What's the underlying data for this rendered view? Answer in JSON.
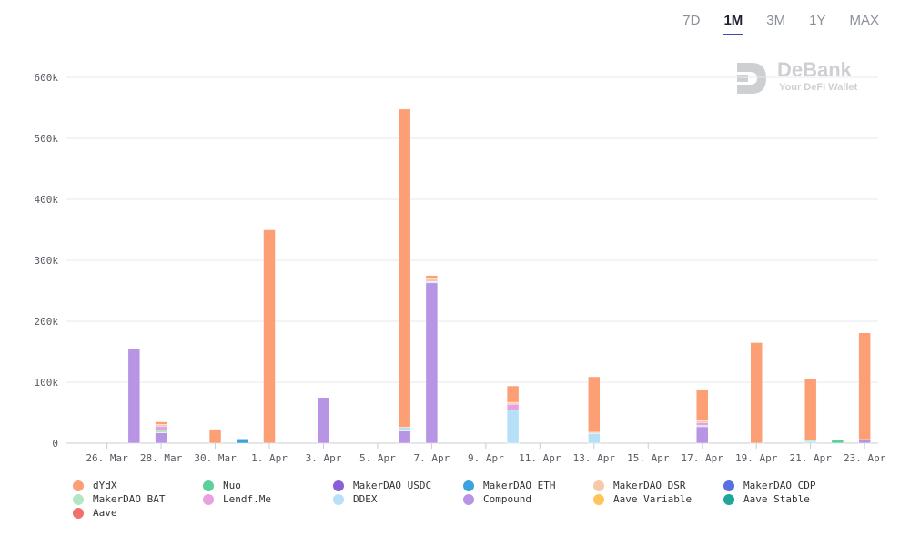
{
  "range_tabs": [
    {
      "label": "7D",
      "active": false
    },
    {
      "label": "1M",
      "active": true
    },
    {
      "label": "3M",
      "active": false
    },
    {
      "label": "1Y",
      "active": false
    },
    {
      "label": "MAX",
      "active": false
    }
  ],
  "watermark": {
    "name": "DeBank",
    "tagline": "Your DeFi Wallet"
  },
  "chart_data": {
    "type": "bar",
    "stacked": true,
    "title": "",
    "xlabel": "",
    "ylabel": "",
    "ylim": [
      0,
      600000
    ],
    "y_ticks": [
      0,
      100000,
      200000,
      300000,
      400000,
      500000,
      600000
    ],
    "y_tick_labels": [
      "0",
      "100k",
      "200k",
      "300k",
      "400k",
      "500k",
      "600k"
    ],
    "x_tick_labels": [
      "26. Mar",
      "28. Mar",
      "30. Mar",
      "1. Apr",
      "3. Apr",
      "5. Apr",
      "7. Apr",
      "9. Apr",
      "11. Apr",
      "13. Apr",
      "15. Apr",
      "17. Apr",
      "19. Apr",
      "21. Apr",
      "23. Apr"
    ],
    "categories": [
      "25. Mar",
      "26. Mar",
      "27. Mar",
      "28. Mar",
      "29. Mar",
      "30. Mar",
      "31. Mar",
      "1. Apr",
      "2. Apr",
      "3. Apr",
      "4. Apr",
      "5. Apr",
      "6. Apr",
      "7. Apr",
      "8. Apr",
      "9. Apr",
      "10. Apr",
      "11. Apr",
      "12. Apr",
      "13. Apr",
      "14. Apr",
      "15. Apr",
      "16. Apr",
      "17. Apr",
      "18. Apr",
      "19. Apr",
      "20. Apr",
      "21. Apr",
      "22. Apr",
      "23. Apr"
    ],
    "series": [
      {
        "name": "Compound",
        "color": "#b794e4",
        "values": [
          0,
          0,
          155000,
          17000,
          0,
          0,
          0,
          0,
          0,
          75000,
          0,
          0,
          20000,
          263000,
          0,
          0,
          0,
          0,
          0,
          0,
          0,
          0,
          0,
          27000,
          0,
          0,
          0,
          0,
          0,
          6000
        ]
      },
      {
        "name": "DDEX",
        "color": "#b6e0f7",
        "values": [
          0,
          0,
          0,
          0,
          0,
          0,
          0,
          0,
          0,
          0,
          0,
          0,
          6000,
          2000,
          0,
          0,
          54000,
          0,
          0,
          16000,
          0,
          0,
          0,
          0,
          0,
          0,
          0,
          3000,
          0,
          0
        ]
      },
      {
        "name": "MakerDAO ETH",
        "color": "#3aa3dc",
        "values": [
          0,
          0,
          0,
          0,
          0,
          0,
          7000,
          0,
          0,
          0,
          0,
          0,
          0,
          0,
          0,
          0,
          0,
          0,
          0,
          0,
          0,
          0,
          0,
          0,
          0,
          0,
          0,
          0,
          0,
          0
        ]
      },
      {
        "name": "MakerDAO BAT",
        "color": "#b3e6c4",
        "values": [
          0,
          0,
          0,
          5000,
          0,
          0,
          0,
          0,
          0,
          0,
          0,
          0,
          0,
          0,
          0,
          0,
          0,
          0,
          0,
          0,
          0,
          0,
          0,
          2000,
          0,
          0,
          0,
          2000,
          0,
          0
        ]
      },
      {
        "name": "Lendf.Me",
        "color": "#e8a0e0",
        "values": [
          0,
          0,
          0,
          6000,
          0,
          0,
          0,
          0,
          0,
          0,
          0,
          0,
          0,
          0,
          0,
          0,
          10000,
          0,
          0,
          0,
          0,
          0,
          0,
          5000,
          0,
          0,
          0,
          0,
          0,
          0
        ]
      },
      {
        "name": "Nuo",
        "color": "#5bcf9c",
        "values": [
          0,
          0,
          0,
          0,
          0,
          0,
          0,
          0,
          0,
          0,
          0,
          0,
          0,
          0,
          0,
          0,
          0,
          0,
          0,
          0,
          0,
          0,
          0,
          0,
          0,
          0,
          0,
          0,
          6000,
          0
        ]
      },
      {
        "name": "MakerDAO DSR",
        "color": "#f7c9a8",
        "values": [
          0,
          0,
          0,
          3000,
          0,
          0,
          0,
          0,
          0,
          0,
          0,
          0,
          0,
          5000,
          0,
          0,
          3000,
          0,
          0,
          2000,
          0,
          0,
          0,
          3000,
          0,
          0,
          0,
          0,
          0,
          0
        ]
      },
      {
        "name": "Aave",
        "color": "#f07167",
        "values": [
          0,
          0,
          0,
          0,
          0,
          0,
          0,
          0,
          0,
          0,
          0,
          0,
          0,
          0,
          0,
          0,
          0,
          0,
          0,
          0,
          0,
          0,
          0,
          0,
          0,
          0,
          0,
          0,
          0,
          0
        ]
      },
      {
        "name": "dYdX",
        "color": "#fc9f74",
        "values": [
          0,
          0,
          0,
          4000,
          0,
          23000,
          0,
          350000,
          0,
          0,
          0,
          0,
          522000,
          5000,
          0,
          0,
          27000,
          0,
          0,
          91000,
          0,
          0,
          0,
          50000,
          0,
          165000,
          0,
          100000,
          0,
          175000
        ]
      },
      {
        "name": "MakerDAO USDC",
        "color": "#8b5fd6",
        "values": [
          0,
          0,
          0,
          0,
          0,
          0,
          0,
          0,
          0,
          0,
          0,
          0,
          0,
          0,
          0,
          0,
          0,
          0,
          0,
          0,
          0,
          0,
          0,
          0,
          0,
          0,
          0,
          0,
          0,
          0
        ]
      },
      {
        "name": "MakerDAO CDP",
        "color": "#5a6fe0",
        "values": [
          0,
          0,
          0,
          0,
          0,
          0,
          0,
          0,
          0,
          0,
          0,
          0,
          0,
          0,
          0,
          0,
          0,
          0,
          0,
          0,
          0,
          0,
          0,
          0,
          0,
          0,
          0,
          0,
          0,
          0
        ]
      },
      {
        "name": "Aave Variable",
        "color": "#ffc45c",
        "values": [
          0,
          0,
          0,
          0,
          0,
          0,
          0,
          0,
          0,
          0,
          0,
          0,
          0,
          0,
          0,
          0,
          0,
          0,
          0,
          0,
          0,
          0,
          0,
          0,
          0,
          0,
          0,
          0,
          0,
          0
        ]
      },
      {
        "name": "Aave Stable",
        "color": "#1fa59a",
        "values": [
          0,
          0,
          0,
          0,
          0,
          0,
          0,
          0,
          0,
          0,
          0,
          0,
          0,
          0,
          0,
          0,
          0,
          0,
          0,
          0,
          0,
          0,
          0,
          0,
          0,
          0,
          0,
          0,
          0,
          0
        ]
      }
    ],
    "legend": {
      "placement": "bottom",
      "items": [
        {
          "label": "dYdX",
          "color": "#fc9f74"
        },
        {
          "label": "Nuo",
          "color": "#5bcf9c"
        },
        {
          "label": "MakerDAO USDC",
          "color": "#8b5fd6"
        },
        {
          "label": "MakerDAO ETH",
          "color": "#3aa3dc"
        },
        {
          "label": "MakerDAO DSR",
          "color": "#f7c9a8"
        },
        {
          "label": "MakerDAO CDP",
          "color": "#5a6fe0"
        },
        {
          "label": "MakerDAO BAT",
          "color": "#b3e6c4"
        },
        {
          "label": "Lendf.Me",
          "color": "#e8a0e0"
        },
        {
          "label": "DDEX",
          "color": "#b6e0f7"
        },
        {
          "label": "Compound",
          "color": "#b794e4"
        },
        {
          "label": "Aave Variable",
          "color": "#ffc45c"
        },
        {
          "label": "Aave Stable",
          "color": "#1fa59a"
        },
        {
          "label": "Aave",
          "color": "#f07167"
        }
      ]
    }
  }
}
